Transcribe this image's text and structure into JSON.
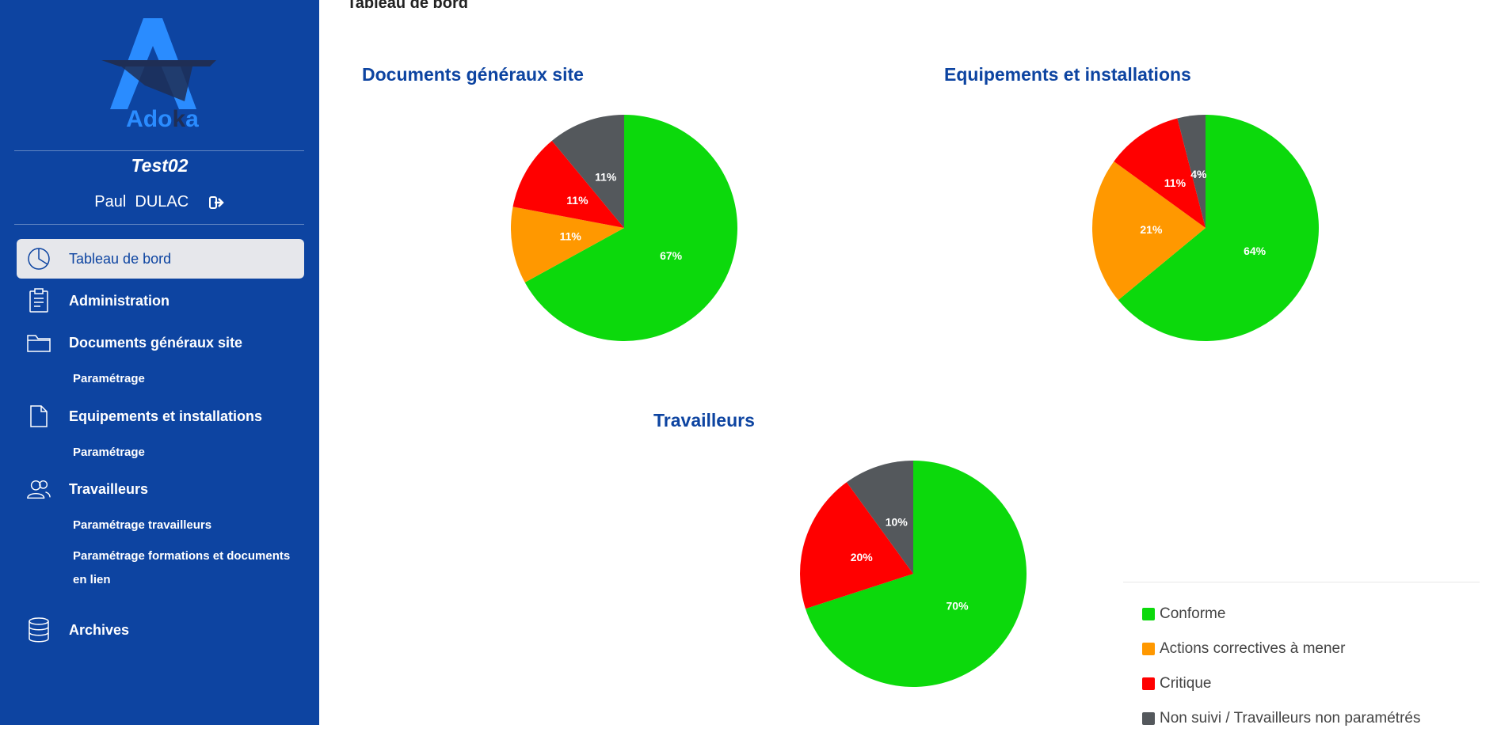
{
  "sidebar": {
    "logo_text_a": "Ado",
    "logo_text_k": "k",
    "logo_text_b": "a",
    "site_name": "Test02",
    "user_name": "Paul  DULAC",
    "nav": [
      {
        "label": "Tableau de bord",
        "icon": "pie-chart-icon",
        "active": true
      },
      {
        "label": "Administration",
        "icon": "clipboard-icon"
      },
      {
        "label": "Documents généraux site",
        "icon": "folder-icon"
      },
      {
        "label": "Equipements et installations",
        "icon": "file-icon"
      },
      {
        "label": "Travailleurs",
        "icon": "users-icon"
      },
      {
        "label": "Archives",
        "icon": "database-icon"
      }
    ],
    "sub": {
      "docs_param": "Paramétrage",
      "equip_param": "Paramétrage",
      "trav_param": "Paramétrage travailleurs",
      "trav_formations": "Paramétrage formations et documents en lien"
    }
  },
  "main": {
    "title": "Tableau de bord"
  },
  "colors": {
    "conforme": "#0cd90c",
    "actions": "#ff9800",
    "critique": "#ff0000",
    "non_suivi": "#54585c",
    "brand": "#0d44a1"
  },
  "chart_data": [
    {
      "type": "pie",
      "title": "Documents généraux site",
      "slices": [
        {
          "name": "Conforme",
          "value": 67,
          "label": "67%"
        },
        {
          "name": "Actions correctives à mener",
          "value": 11,
          "label": "11%"
        },
        {
          "name": "Critique",
          "value": 11,
          "label": "11%"
        },
        {
          "name": "Non suivi / Travailleurs non paramétrés",
          "value": 11,
          "label": "11%"
        }
      ]
    },
    {
      "type": "pie",
      "title": "Equipements et installations",
      "slices": [
        {
          "name": "Conforme",
          "value": 64,
          "label": "64%"
        },
        {
          "name": "Actions correctives à mener",
          "value": 21,
          "label": "21%"
        },
        {
          "name": "Critique",
          "value": 11,
          "label": "11%"
        },
        {
          "name": "Non suivi / Travailleurs non paramétrés",
          "value": 4,
          "label": "4%"
        }
      ]
    },
    {
      "type": "pie",
      "title": "Travailleurs",
      "slices": [
        {
          "name": "Conforme",
          "value": 70,
          "label": "70%"
        },
        {
          "name": "Actions correctives à mener",
          "value": 0,
          "label": ""
        },
        {
          "name": "Critique",
          "value": 20,
          "label": "20%"
        },
        {
          "name": "Non suivi / Travailleurs non paramétrés",
          "value": 10,
          "label": "10%"
        }
      ]
    }
  ],
  "legend": [
    {
      "label": "Conforme",
      "color_key": "conforme"
    },
    {
      "label": "Actions correctives à mener",
      "color_key": "actions"
    },
    {
      "label": "Critique",
      "color_key": "critique"
    },
    {
      "label": "Non suivi / Travailleurs non paramétrés",
      "color_key": "non_suivi"
    }
  ]
}
